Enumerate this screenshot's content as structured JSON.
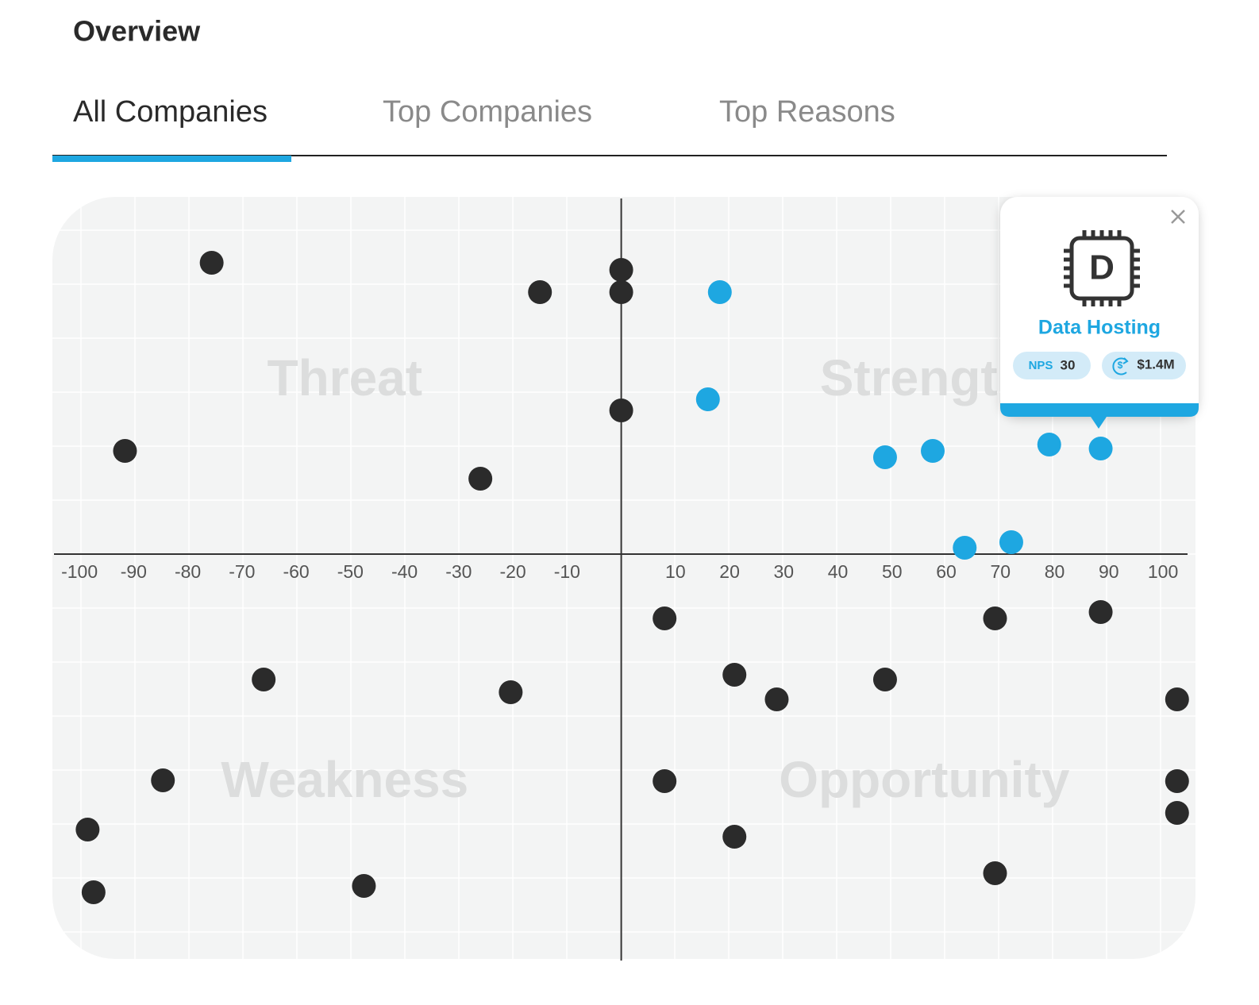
{
  "header": {
    "title": "Overview"
  },
  "tabs": {
    "items": [
      "All Companies",
      "Top Companies",
      "Top Reasons"
    ],
    "active": 0
  },
  "chart_data": {
    "type": "scatter",
    "xlim": [
      -105,
      106
    ],
    "ylim": [
      -102,
      90
    ],
    "xticks": [
      -100,
      -90,
      -80,
      -70,
      -60,
      -50,
      -40,
      -30,
      -20,
      -10,
      10,
      20,
      30,
      40,
      50,
      60,
      70,
      80,
      90,
      100
    ],
    "annotations": [
      "Threat",
      "Strength",
      "Weakness",
      "Opportunity"
    ],
    "series": [
      {
        "color": "#2b2b2b",
        "x": [
          -75.6,
          0,
          -15,
          0,
          0,
          -91.6,
          -26,
          8,
          69,
          88.5,
          -66,
          -20.4,
          20.9,
          28.7,
          48.7,
          102.6,
          -84.6,
          8,
          102.6,
          102.6,
          -98.5,
          20.9,
          -97.4,
          -47.5,
          69
        ],
        "values": [
          73.4,
          71.6,
          66,
          66,
          36.2,
          26,
          19,
          -16.2,
          -16.2,
          -14.6,
          -31.6,
          -34.8,
          -30.4,
          -36.6,
          -31.6,
          -36.6,
          -57,
          -57.2,
          -57.2,
          -65.2,
          -69.4,
          -71.2,
          -85.2,
          -83.6,
          -80.4
        ]
      },
      {
        "color": "#1ea7e1",
        "x": [
          18.2,
          16,
          48.7,
          57.5,
          79,
          88.5,
          63.4,
          72
        ],
        "values": [
          66,
          39,
          24.4,
          26,
          27.6,
          26.6,
          1.6,
          3
        ]
      }
    ]
  },
  "tooltip": {
    "icon": "D",
    "title": "Data Hosting",
    "nps_label": "NPS",
    "nps": 30,
    "revenue": "$1.4M"
  }
}
